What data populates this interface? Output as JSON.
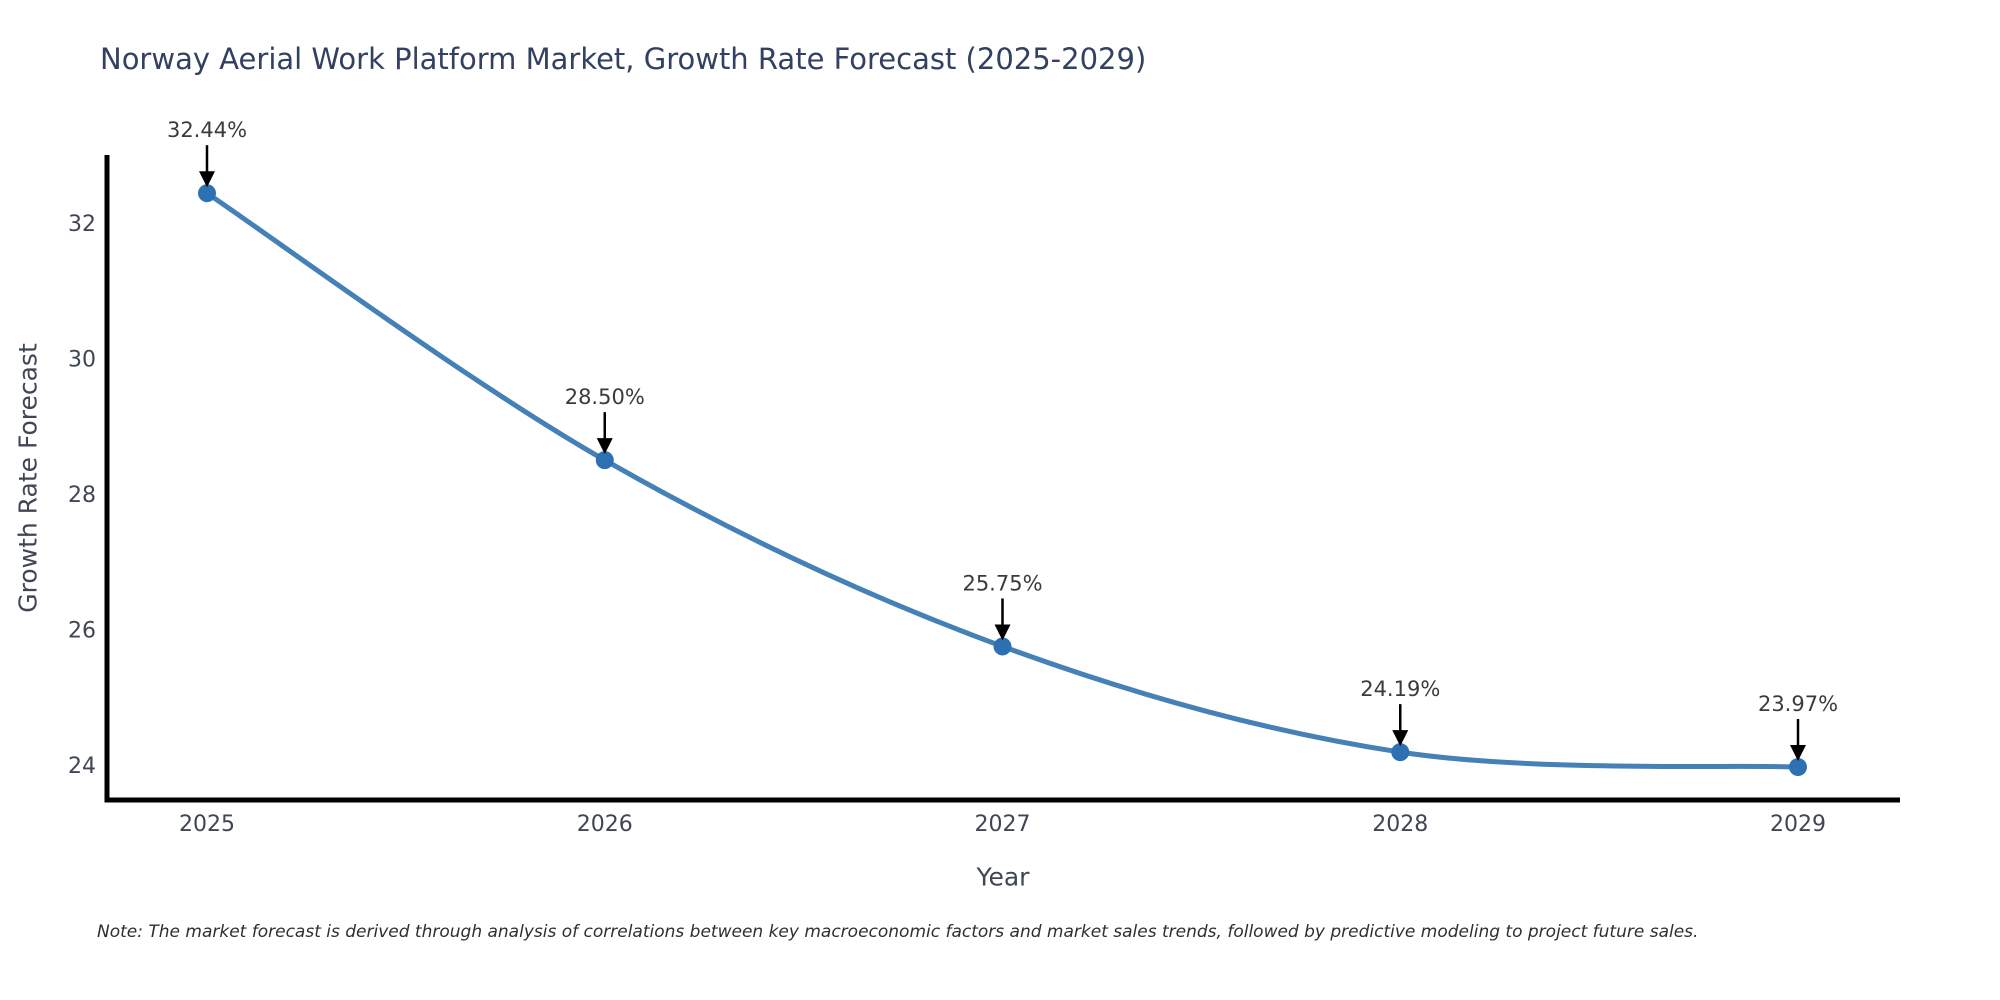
{
  "chart_data": {
    "type": "line",
    "title": "Norway Aerial Work Platform Market, Growth Rate Forecast (2025-2029)",
    "xlabel": "Year",
    "ylabel": "Growth Rate Forecast",
    "x": [
      2025,
      2026,
      2027,
      2028,
      2029
    ],
    "series": [
      {
        "name": "Growth Rate Forecast",
        "values": [
          32.44,
          28.5,
          25.75,
          24.19,
          23.97
        ]
      }
    ],
    "point_labels": [
      "32.44%",
      "28.50%",
      "25.75%",
      "24.19%",
      "23.97%"
    ],
    "xticks": [
      "2025",
      "2026",
      "2027",
      "2028",
      "2029"
    ],
    "yticks": [
      24,
      26,
      28,
      30,
      32
    ],
    "ylim": [
      23.48,
      33.0
    ],
    "grid": false,
    "legend": false,
    "line_shape": "spline",
    "colors": {
      "line": "#4580b6",
      "marker": "#2e71b2",
      "arrow": "#000000",
      "axis": "#000000",
      "tick_label": "#3f4654",
      "title": "#31415f",
      "annotation_text": "#3b3b3b"
    },
    "note": "Note: The market forecast is derived through analysis of correlations between key macroeconomic factors and market sales trends, followed by predictive modeling to project future sales."
  }
}
